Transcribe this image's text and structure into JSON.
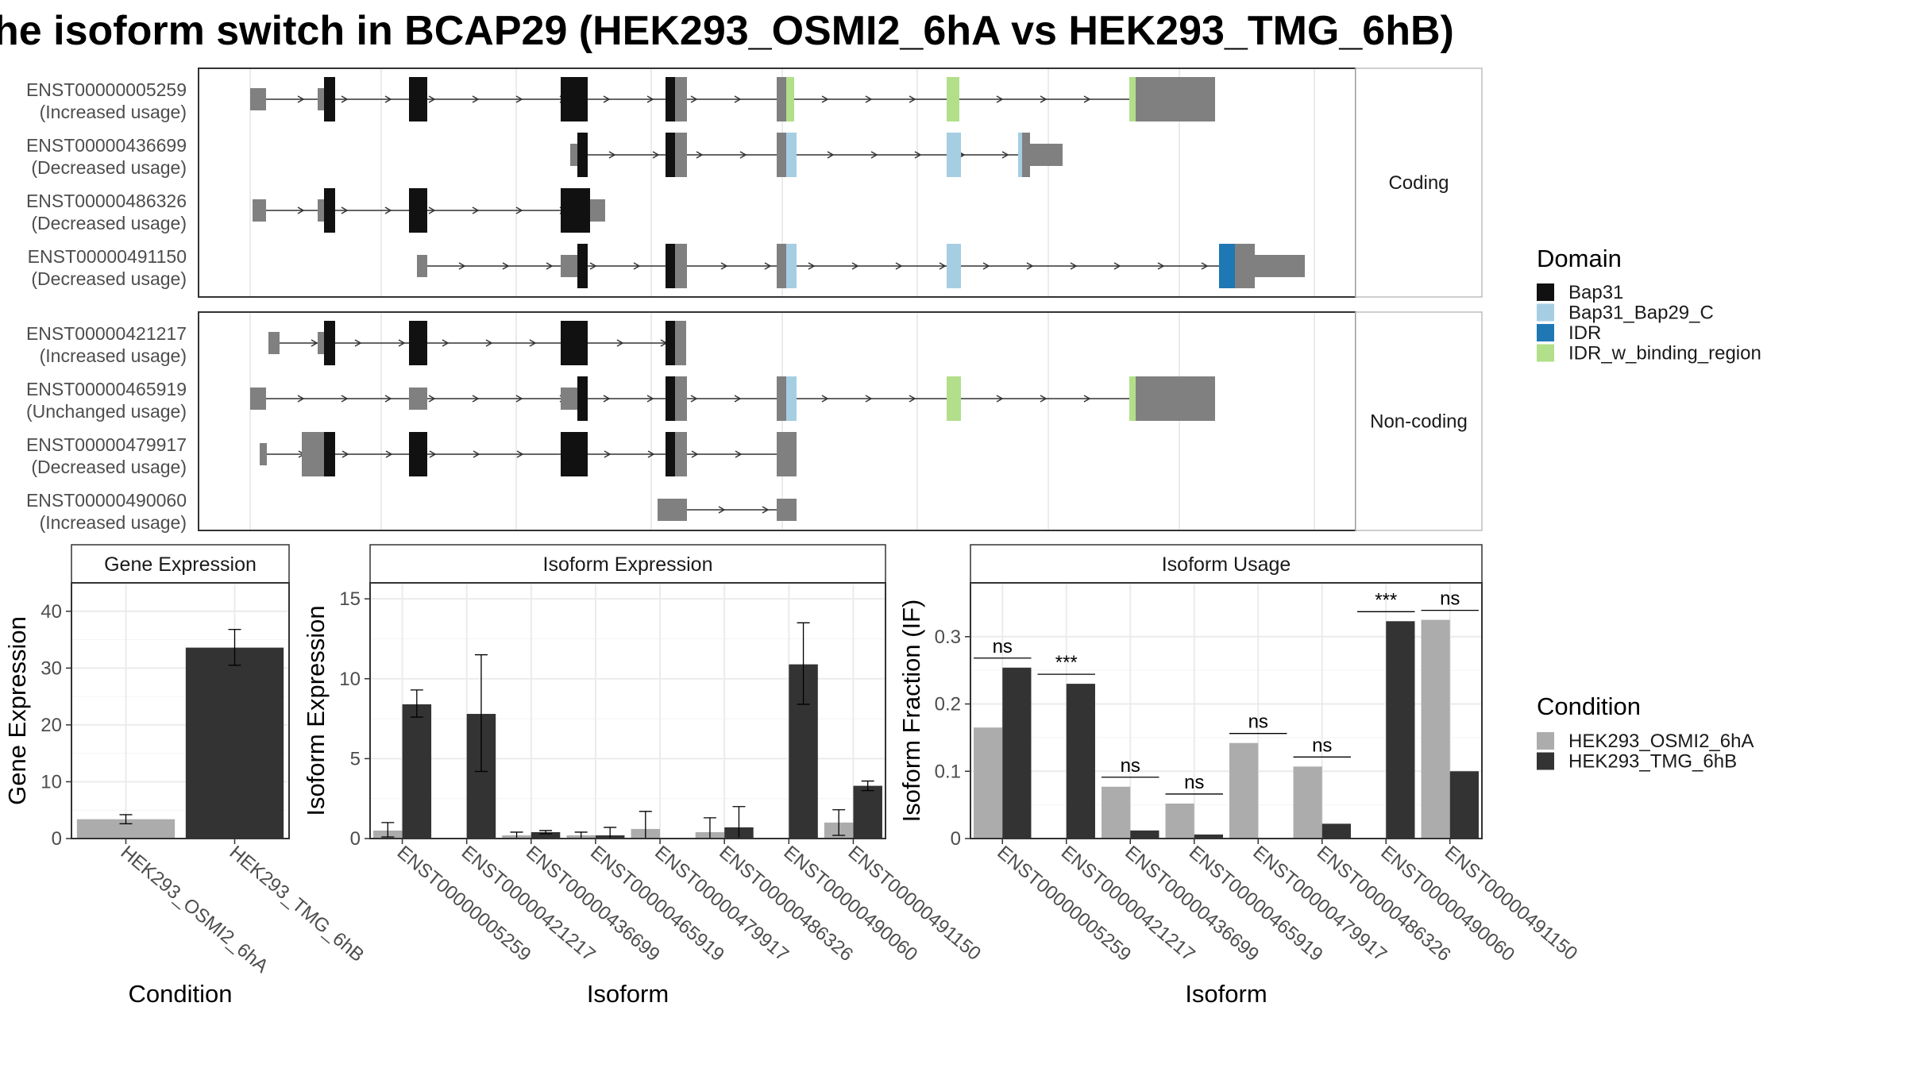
{
  "title": "he isoform switch in BCAP29 (HEK293_OSMI2_6hA vs HEK293_TMG_6hB)",
  "colors": {
    "domain_bap31": "#111111",
    "domain_bap31_bap29_c": "#a6cee3",
    "domain_idr": "#1f78b4",
    "domain_idr_w_binding_region": "#b2df8a",
    "exon_noncoding": "#808080",
    "cond_a": "#acacac",
    "cond_b": "#333333",
    "grid": "#ebebeb",
    "panel_border": "#333333",
    "strip_border": "#bdbdbd"
  },
  "structure_panel": {
    "facets": [
      {
        "label": "Coding",
        "transcripts": [
          {
            "id": "ENST00000005259",
            "usage": "(Increased usage)"
          },
          {
            "id": "ENST00000436699",
            "usage": "(Decreased usage)"
          },
          {
            "id": "ENST00000486326",
            "usage": "(Decreased usage)"
          },
          {
            "id": "ENST00000491150",
            "usage": "(Decreased usage)"
          }
        ]
      },
      {
        "label": "Non-coding",
        "transcripts": [
          {
            "id": "ENST00000421217",
            "usage": "(Increased usage)"
          },
          {
            "id": "ENST00000465919",
            "usage": "(Unchanged usage)"
          },
          {
            "id": "ENST00000479917",
            "usage": "(Decreased usage)"
          },
          {
            "id": "ENST00000490060",
            "usage": "(Increased usage)"
          }
        ]
      }
    ]
  },
  "legend_domain": {
    "title": "Domain",
    "items": [
      {
        "label": "Bap31",
        "color": "#111111"
      },
      {
        "label": "Bap31_Bap29_C",
        "color": "#a6cee3"
      },
      {
        "label": "IDR",
        "color": "#1f78b4"
      },
      {
        "label": "IDR_w_binding_region",
        "color": "#b2df8a"
      }
    ]
  },
  "legend_condition": {
    "title": "Condition",
    "items": [
      {
        "label": "HEK293_OSMI2_6hA",
        "color": "#acacac"
      },
      {
        "label": "HEK293_TMG_6hB",
        "color": "#333333"
      }
    ]
  },
  "chart_data": [
    {
      "type": "bar",
      "panel": "Gene Expression",
      "xlabel": "Condition",
      "ylabel": "Gene Expression",
      "ylim": [
        0,
        45
      ],
      "yticks": [
        0,
        10,
        20,
        30,
        40
      ],
      "categories": [
        "HEK293_OSMI2_6hA",
        "HEK293_TMG_6hB"
      ],
      "values": [
        3.4,
        33.6
      ],
      "error": [
        [
          2.6,
          4.2
        ],
        [
          30.5,
          36.8
        ]
      ]
    },
    {
      "type": "bar",
      "panel": "Isoform Expression",
      "xlabel": "Isoform",
      "ylabel": "Isoform Expression",
      "ylim": [
        0,
        16
      ],
      "yticks": [
        0,
        5,
        10,
        15
      ],
      "categories": [
        "ENST00000005259",
        "ENST00000421217",
        "ENST00000436699",
        "ENST00000465919",
        "ENST00000479917",
        "ENST00000486326",
        "ENST00000490060",
        "ENST00000491150"
      ],
      "series": [
        {
          "name": "HEK293_OSMI2_6hA",
          "values": [
            0.5,
            0.0,
            0.2,
            0.2,
            0.6,
            0.4,
            0.0,
            1.0
          ],
          "error": [
            [
              0.1,
              1.0
            ],
            [
              0.0,
              0.0
            ],
            [
              0.0,
              0.4
            ],
            [
              0.0,
              0.4
            ],
            [
              0.0,
              1.7
            ],
            [
              0.0,
              1.3
            ],
            [
              0.0,
              0.0
            ],
            [
              0.2,
              1.8
            ]
          ]
        },
        {
          "name": "HEK293_TMG_6hB",
          "values": [
            8.4,
            7.8,
            0.4,
            0.2,
            0.0,
            0.7,
            10.9,
            3.3
          ],
          "error": [
            [
              7.6,
              9.3
            ],
            [
              4.2,
              11.5
            ],
            [
              0.3,
              0.5
            ],
            [
              0.0,
              0.7
            ],
            [
              0.0,
              0.0
            ],
            [
              0.0,
              2.0
            ],
            [
              8.4,
              13.5
            ],
            [
              3.0,
              3.6
            ]
          ]
        }
      ]
    },
    {
      "type": "bar",
      "panel": "Isoform Usage",
      "xlabel": "Isoform",
      "ylabel": "Isoform Fraction (IF)",
      "ylim": [
        0,
        0.38
      ],
      "yticks": [
        0.0,
        0.1,
        0.2,
        0.3
      ],
      "categories": [
        "ENST00000005259",
        "ENST00000421217",
        "ENST00000436699",
        "ENST00000465919",
        "ENST00000479917",
        "ENST00000486326",
        "ENST00000490060",
        "ENST00000491150"
      ],
      "series": [
        {
          "name": "HEK293_OSMI2_6hA",
          "values": [
            0.165,
            0.0,
            0.077,
            0.052,
            0.142,
            0.107,
            0.0,
            0.325
          ]
        },
        {
          "name": "HEK293_TMG_6hB",
          "values": [
            0.254,
            0.23,
            0.012,
            0.006,
            0.0,
            0.022,
            0.323,
            0.1
          ]
        }
      ],
      "significance": [
        "ns",
        "***",
        "ns",
        "ns",
        "ns",
        "ns",
        "***",
        "ns"
      ]
    }
  ]
}
